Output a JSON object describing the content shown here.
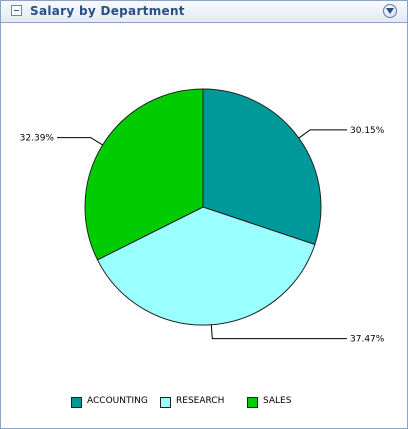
{
  "panel": {
    "title": "Salary by Department"
  },
  "chart_data": {
    "type": "pie",
    "categories": [
      "ACCOUNTING",
      "RESEARCH",
      "SALES"
    ],
    "values": [
      30.15,
      37.47,
      32.39
    ],
    "labels": [
      "30.15%",
      "37.47%",
      "32.39%"
    ],
    "colors": [
      "#009999",
      "#99ffff",
      "#00cc00"
    ],
    "legend_position": "bottom"
  }
}
